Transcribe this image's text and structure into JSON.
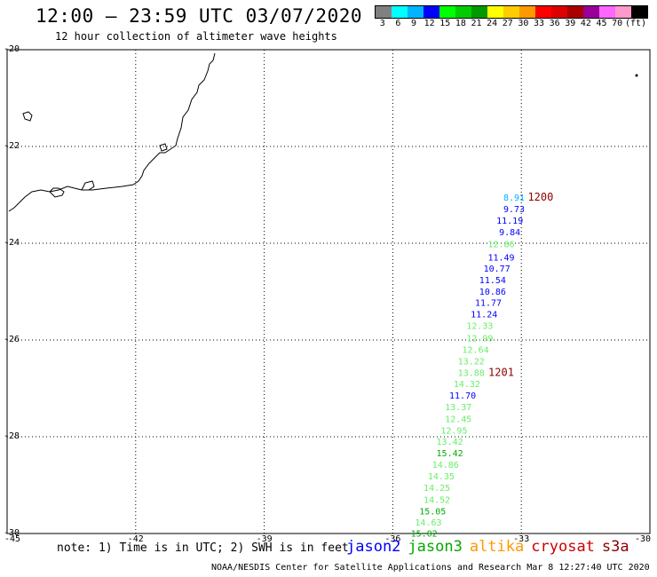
{
  "header": {
    "title": "12:00 – 23:59 UTC 03/07/2020",
    "subtitle": "12 hour collection of altimeter wave heights"
  },
  "legend": {
    "unit": "(ft)",
    "colors": [
      "#808080",
      "#00ffff",
      "#00b4ff",
      "#0000ff",
      "#00ff00",
      "#00cc00",
      "#009900",
      "#ffff00",
      "#ffcc00",
      "#ff9900",
      "#ff0000",
      "#dd0000",
      "#aa0000",
      "#990099",
      "#ff66ff",
      "#ff99cc",
      "#000000"
    ],
    "labels": [
      "3",
      "6",
      "9",
      "12",
      "15",
      "18",
      "21",
      "24",
      "27",
      "30",
      "33",
      "36",
      "39",
      "42",
      "45",
      "70",
      "(ft)"
    ]
  },
  "axes": {
    "lat_labels": [
      "-20",
      "-22",
      "-24",
      "-26",
      "-28",
      "-30"
    ],
    "lon_labels": [
      "-45",
      "-42",
      "-39",
      "-36",
      "-33",
      "-30"
    ]
  },
  "observations": [
    {
      "value": "8.91",
      "lon": -33.17,
      "lat": -23.05,
      "color": "#00b4ff"
    },
    {
      "value": "9.73",
      "lon": -33.17,
      "lat": -23.28,
      "color": "#0000ff"
    },
    {
      "value": "11.19",
      "lon": -33.27,
      "lat": -23.52,
      "color": "#0000ff"
    },
    {
      "value": "9.84",
      "lon": -33.27,
      "lat": -23.76,
      "color": "#0000ff"
    },
    {
      "value": "12.86",
      "lon": -33.47,
      "lat": -24.01,
      "color": "#66ee66"
    },
    {
      "value": "11.49",
      "lon": -33.47,
      "lat": -24.28,
      "color": "#0000ff"
    },
    {
      "value": "10.77",
      "lon": -33.57,
      "lat": -24.51,
      "color": "#0000ff"
    },
    {
      "value": "11.54",
      "lon": -33.67,
      "lat": -24.75,
      "color": "#0000ff"
    },
    {
      "value": "10.86",
      "lon": -33.67,
      "lat": -24.99,
      "color": "#0000ff"
    },
    {
      "value": "11.77",
      "lon": -33.77,
      "lat": -25.22,
      "color": "#0000ff"
    },
    {
      "value": "11.24",
      "lon": -33.87,
      "lat": -25.46,
      "color": "#0000ff"
    },
    {
      "value": "12.33",
      "lon": -33.97,
      "lat": -25.7,
      "color": "#66ee66"
    },
    {
      "value": "12.99",
      "lon": -33.97,
      "lat": -25.95,
      "color": "#66ee66"
    },
    {
      "value": "12.64",
      "lon": -34.07,
      "lat": -26.19,
      "color": "#66ee66"
    },
    {
      "value": "13.22",
      "lon": -34.17,
      "lat": -26.43,
      "color": "#66ee66"
    },
    {
      "value": "13.88",
      "lon": -34.17,
      "lat": -26.67,
      "color": "#66ee66"
    },
    {
      "value": "14.32",
      "lon": -34.27,
      "lat": -26.9,
      "color": "#66ee66"
    },
    {
      "value": "11.70",
      "lon": -34.37,
      "lat": -27.14,
      "color": "#0000ff"
    },
    {
      "value": "13.37",
      "lon": -34.47,
      "lat": -27.38,
      "color": "#66ee66"
    },
    {
      "value": "12.45",
      "lon": -34.47,
      "lat": -27.62,
      "color": "#66ee66"
    },
    {
      "value": "12.95",
      "lon": -34.57,
      "lat": -27.86,
      "color": "#66ee66"
    },
    {
      "value": "13.42",
      "lon": -34.67,
      "lat": -28.09,
      "color": "#66ee66"
    },
    {
      "value": "15.42",
      "lon": -34.67,
      "lat": -28.33,
      "color": "#00aa00"
    },
    {
      "value": "14.86",
      "lon": -34.77,
      "lat": -28.57,
      "color": "#66ee66"
    },
    {
      "value": "14.35",
      "lon": -34.87,
      "lat": -28.81,
      "color": "#66ee66"
    },
    {
      "value": "14.25",
      "lon": -34.97,
      "lat": -29.05,
      "color": "#66ee66"
    },
    {
      "value": "14.52",
      "lon": -34.97,
      "lat": -29.29,
      "color": "#66ee66"
    },
    {
      "value": "15.05",
      "lon": -35.07,
      "lat": -29.53,
      "color": "#00aa00"
    },
    {
      "value": "14.63",
      "lon": -35.17,
      "lat": -29.76,
      "color": "#66ee66"
    },
    {
      "value": "15.02",
      "lon": -35.27,
      "lat": -29.99,
      "color": "#00aa00"
    }
  ],
  "time_marks": [
    {
      "label": "1200",
      "lon": -32.85,
      "lat": -23.05,
      "color": "#8b0000"
    },
    {
      "label": "1201",
      "lon": -33.77,
      "lat": -26.67,
      "color": "#8b0000"
    }
  ],
  "footer": {
    "note": "note: 1) Time is in UTC; 2) SWH is in feet",
    "satellites": [
      {
        "name": "jason2",
        "color": "#0000ff"
      },
      {
        "name": "jason3",
        "color": "#00aa00"
      },
      {
        "name": "altika",
        "color": "#ff9900"
      },
      {
        "name": "cryosat",
        "color": "#cc0000"
      },
      {
        "name": "s3a",
        "color": "#8b0000"
      }
    ],
    "credit": "NOAA/NESDIS Center for Satellite Applications and Research    Mar  8 12:27:40 UTC 2020"
  }
}
